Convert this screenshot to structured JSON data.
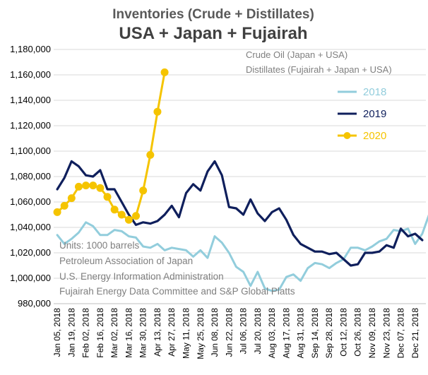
{
  "chart_data": {
    "type": "line",
    "title": "Inventories (Crude + Distillates)",
    "subtitle": "USA + Japan + Fujairah",
    "xlabel": "",
    "ylabel": "",
    "ylim": [
      980000,
      1180000
    ],
    "yticks": [
      "980,000",
      "1,000,000",
      "1,020,000",
      "1,040,000",
      "1,060,000",
      "1,080,000",
      "1,100,000",
      "1,120,000",
      "1,140,000",
      "1,160,000",
      "1,180,000"
    ],
    "xtick_labels": [
      "Jan 05, 2018",
      "Jan 19, 2018",
      "Feb 02, 2018",
      "Feb 16, 2018",
      "Mar 02, 2018",
      "Mar 16, 2018",
      "Mar 30, 2018",
      "Apr 13, 2018",
      "Apr 27, 2018",
      "May 11, 2018",
      "May 25, 2018",
      "Jun 08, 2018",
      "Jun 22, 2018",
      "Jul 06, 2018",
      "Jul 20, 2018",
      "Aug 03, 2018",
      "Aug 17, 2018",
      "Aug 31, 2018",
      "Sep 14, 2018",
      "Sep 28, 2018",
      "Oct 12, 2018",
      "Oct 26, 2018",
      "Nov 09, 2018",
      "Nov 23, 2018",
      "Dec 07, 2018",
      "Dec 21, 2018"
    ],
    "annotations": [
      "Crude Oil (Japan + USA)",
      "Distillates (Fujairah + Japan + USA)"
    ],
    "notes": [
      "Units: 1000 barrels",
      "Petroleum Association of Japan",
      "U.S. Energy Information Administration",
      "Fujairah Energy Data Committee and S&P Global Platts"
    ],
    "legend_position": "top-right",
    "grid": true,
    "series": [
      {
        "name": "2018",
        "color": "#92cddc",
        "marker": "none",
        "values": [
          1034000,
          1027000,
          1031000,
          1036000,
          1044000,
          1041000,
          1034000,
          1034000,
          1038000,
          1037000,
          1033000,
          1032000,
          1025000,
          1024000,
          1027000,
          1022000,
          1024000,
          1023000,
          1022000,
          1017000,
          1022000,
          1016000,
          1033000,
          1028000,
          1020000,
          1009000,
          1005000,
          994000,
          1005000,
          992000,
          990000,
          991000,
          1001000,
          1003000,
          998000,
          1008000,
          1012000,
          1011000,
          1008000,
          1012000,
          1015000,
          1024000,
          1024000,
          1022000,
          1025000,
          1029000,
          1031000,
          1038000,
          1037000,
          1039000,
          1027000,
          1035000,
          1051000
        ]
      },
      {
        "name": "2019",
        "color": "#0f1f5c",
        "marker": "none",
        "values": [
          1070000,
          1079000,
          1092000,
          1088000,
          1081000,
          1080000,
          1085000,
          1070000,
          1070000,
          1060000,
          1050000,
          1042000,
          1044000,
          1043000,
          1045000,
          1050000,
          1057000,
          1048000,
          1067000,
          1074000,
          1069000,
          1084000,
          1092000,
          1081000,
          1056000,
          1055000,
          1050000,
          1062000,
          1051000,
          1045000,
          1052000,
          1055000,
          1046000,
          1034000,
          1027000,
          1024000,
          1021000,
          1021000,
          1019000,
          1020000,
          1015000,
          1010000,
          1011000,
          1020000,
          1020000,
          1021000,
          1026000,
          1024000,
          1039000,
          1033000,
          1035000,
          1030000
        ]
      },
      {
        "name": "2020",
        "color": "#f5c400",
        "marker": "circle",
        "values": [
          1052000,
          1057000,
          1063000,
          1072000,
          1073000,
          1073000,
          1071000,
          1064000,
          1054000,
          1050000,
          1046000,
          1049000,
          1069000,
          1097000,
          1131000,
          1162000
        ]
      }
    ]
  }
}
